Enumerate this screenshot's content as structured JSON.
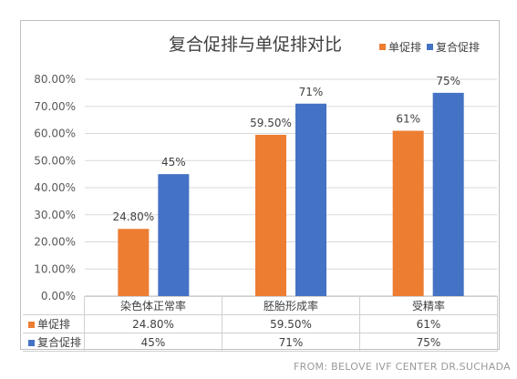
{
  "chart_data": {
    "type": "bar",
    "title": "复合促排与单促排对比",
    "categories": [
      "染色体正常率",
      "胚胎形成率",
      "受精率"
    ],
    "series": [
      {
        "name": "单促排",
        "color": "#ed7d31",
        "values": [
          24.8,
          59.5,
          61
        ],
        "labels": [
          "24.80%",
          "59.50%",
          "61%"
        ]
      },
      {
        "name": "复合促排",
        "color": "#4472c4",
        "values": [
          45,
          71,
          75
        ],
        "labels": [
          "45%",
          "71%",
          "75%"
        ]
      }
    ],
    "ylim": [
      0,
      80
    ],
    "yticks": [
      "0.00%",
      "10.00%",
      "20.00%",
      "30.00%",
      "40.00%",
      "50.00%",
      "60.00%",
      "70.00%",
      "80.00%"
    ],
    "grid": true,
    "legend": "top-right",
    "data_table": true
  },
  "source_text": "FROM: BELOVE IVF CENTER DR.SUCHADA"
}
